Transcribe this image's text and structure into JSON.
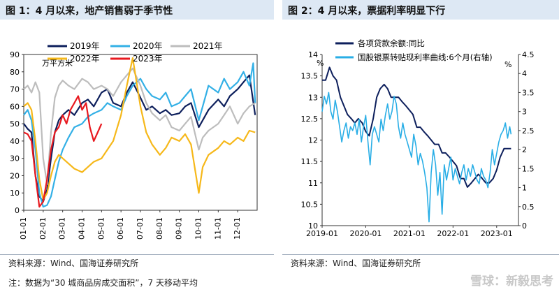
{
  "panel1": {
    "title": "图 1：4 月以来，地产销售弱于季节性",
    "source": "资料来源：Wind、国海证券研究所",
    "note": "注：数据为“30 城商品房成交面积”，7 天移动平均"
  },
  "panel2": {
    "title": "图 2：4 月以来，票据利率明显下行",
    "source": "资料来源：Wind、国海证券研究所"
  },
  "watermark": "雪球：新毅思考",
  "chart_data": [
    {
      "type": "line",
      "ylabel": "万平方米",
      "ylim": [
        0,
        90
      ],
      "yticks": [
        0,
        10,
        20,
        30,
        40,
        50,
        60,
        70,
        80,
        90
      ],
      "categories": [
        "01-01",
        "02-01",
        "03-01",
        "04-01",
        "05-01",
        "06-01",
        "07-01",
        "08-01",
        "09-01",
        "10-01",
        "11-01",
        "12-01"
      ],
      "x_unit": "month (1 = 01-01, 13 = year end)",
      "series": [
        {
          "name": "2019年",
          "color": "#0d1f5c",
          "width": 2.2,
          "x": [
            1,
            1.2,
            1.4,
            1.6,
            1.8,
            2.0,
            2.2,
            2.4,
            2.6,
            2.8,
            3.0,
            3.3,
            3.6,
            4.0,
            4.3,
            4.6,
            5.0,
            5.3,
            5.6,
            6.0,
            6.3,
            6.6,
            7.0,
            7.3,
            7.6,
            8.0,
            8.3,
            8.6,
            9.0,
            9.3,
            9.6,
            10.0,
            10.2,
            10.5,
            11.0,
            11.3,
            11.6,
            12.0,
            12.3,
            12.6,
            12.9
          ],
          "y": [
            50,
            47,
            45,
            20,
            8,
            5,
            12,
            30,
            45,
            52,
            55,
            58,
            55,
            62,
            64,
            60,
            68,
            70,
            62,
            60,
            68,
            74,
            65,
            58,
            60,
            56,
            58,
            55,
            56,
            60,
            62,
            48,
            52,
            58,
            64,
            60,
            66,
            70,
            74,
            78,
            55
          ]
        },
        {
          "name": "2020年",
          "color": "#33b0e6",
          "width": 2.2,
          "x": [
            1,
            1.2,
            1.4,
            1.6,
            1.8,
            2.0,
            2.2,
            2.4,
            2.6,
            2.8,
            3.0,
            3.3,
            3.6,
            4.0,
            4.3,
            4.6,
            5.0,
            5.3,
            5.6,
            6.0,
            6.3,
            6.6,
            7.0,
            7.3,
            7.6,
            8.0,
            8.3,
            8.6,
            9.0,
            9.3,
            9.6,
            10.0,
            10.2,
            10.5,
            11.0,
            11.3,
            11.6,
            12.0,
            12.3,
            12.6,
            12.8,
            12.9
          ],
          "y": [
            55,
            58,
            52,
            35,
            10,
            2,
            3,
            8,
            18,
            28,
            35,
            42,
            48,
            50,
            54,
            56,
            58,
            62,
            60,
            58,
            66,
            72,
            76,
            70,
            66,
            64,
            68,
            60,
            62,
            66,
            70,
            52,
            60,
            72,
            68,
            76,
            70,
            74,
            80,
            72,
            85,
            62
          ]
        },
        {
          "name": "2021年",
          "color": "#bdbdbd",
          "width": 2.2,
          "x": [
            1,
            1.2,
            1.4,
            1.6,
            1.8,
            2.0,
            2.2,
            2.4,
            2.6,
            2.8,
            3.0,
            3.3,
            3.6,
            4.0,
            4.3,
            4.6,
            5.0,
            5.3,
            5.6,
            6.0,
            6.3,
            6.6,
            7.0,
            7.3,
            7.6,
            8.0,
            8.3,
            8.6,
            9.0,
            9.3,
            9.6,
            10.0,
            10.2,
            10.5,
            11.0,
            11.3,
            11.6,
            12.0,
            12.3,
            12.6,
            12.9
          ],
          "y": [
            70,
            72,
            68,
            74,
            68,
            30,
            15,
            45,
            65,
            72,
            75,
            72,
            70,
            76,
            74,
            70,
            72,
            70,
            66,
            74,
            78,
            82,
            72,
            62,
            56,
            52,
            55,
            48,
            46,
            50,
            54,
            35,
            42,
            46,
            50,
            55,
            60,
            50,
            56,
            60,
            62
          ]
        },
        {
          "name": "2022年",
          "color": "#f6b81a",
          "width": 2.2,
          "x": [
            1,
            1.2,
            1.4,
            1.6,
            1.8,
            2.0,
            2.2,
            2.4,
            2.6,
            2.8,
            3.0,
            3.3,
            3.6,
            4.0,
            4.3,
            4.6,
            5.0,
            5.3,
            5.6,
            6.0,
            6.3,
            6.6,
            7.0,
            7.3,
            7.6,
            8.0,
            8.3,
            8.6,
            9.0,
            9.3,
            9.6,
            10.0,
            10.2,
            10.5,
            11.0,
            11.3,
            11.6,
            12.0,
            12.3,
            12.6,
            12.9
          ],
          "y": [
            60,
            62,
            58,
            40,
            18,
            6,
            10,
            20,
            28,
            32,
            30,
            27,
            24,
            22,
            25,
            28,
            30,
            35,
            40,
            55,
            72,
            88,
            60,
            45,
            38,
            32,
            36,
            42,
            40,
            44,
            38,
            10,
            25,
            32,
            36,
            40,
            38,
            42,
            40,
            46,
            45
          ]
        },
        {
          "name": "2023年",
          "color": "#e8191f",
          "width": 2.2,
          "x": [
            1,
            1.2,
            1.4,
            1.6,
            1.8,
            2.0,
            2.2,
            2.4,
            2.6,
            2.8,
            3.0,
            3.2,
            3.4,
            3.6,
            3.8,
            4.0,
            4.2,
            4.4,
            4.6,
            4.8,
            5.0
          ],
          "y": [
            45,
            44,
            40,
            20,
            2,
            5,
            18,
            35,
            45,
            48,
            55,
            50,
            58,
            62,
            66,
            58,
            62,
            48,
            40,
            45,
            50
          ]
        }
      ]
    },
    {
      "type": "line",
      "ylabel_left": "%",
      "ylabel_right": "%",
      "ylim_left": [
        10,
        14
      ],
      "ylim_right": [
        0,
        4.5
      ],
      "yticks_left": [
        10,
        10.5,
        11,
        11.5,
        12,
        12.5,
        13,
        13.5,
        14
      ],
      "yticks_right": [
        0,
        0.5,
        1,
        1.5,
        2,
        2.5,
        3,
        3.5,
        4,
        4.5
      ],
      "categories": [
        "2019-01",
        "2020-01",
        "2021-01",
        "2022-01",
        "2023-01"
      ],
      "x_unit": "years since 2019-01",
      "series": [
        {
          "name": "各项贷款余额:同比",
          "axis": "left",
          "color": "#0d1f5c",
          "width": 2,
          "x": [
            0,
            0.08,
            0.17,
            0.25,
            0.33,
            0.42,
            0.5,
            0.58,
            0.67,
            0.75,
            0.83,
            0.92,
            1.0,
            1.08,
            1.17,
            1.25,
            1.33,
            1.42,
            1.5,
            1.58,
            1.67,
            1.75,
            1.83,
            1.92,
            2.0,
            2.08,
            2.17,
            2.25,
            2.33,
            2.42,
            2.5,
            2.58,
            2.67,
            2.75,
            2.83,
            2.92,
            3.0,
            3.08,
            3.17,
            3.25,
            3.33,
            3.42,
            3.5,
            3.58,
            3.67,
            3.75,
            3.83,
            3.92,
            4.0,
            4.08,
            4.17,
            4.25,
            4.33
          ],
          "y": [
            13.4,
            13.4,
            13.7,
            13.5,
            13.4,
            13.0,
            12.8,
            12.6,
            12.5,
            12.4,
            12.5,
            12.4,
            12.2,
            12.1,
            12.5,
            13.0,
            13.2,
            13.3,
            13.2,
            13.0,
            13.0,
            13.0,
            12.9,
            12.8,
            12.7,
            12.6,
            12.3,
            12.3,
            12.2,
            12.1,
            12.0,
            11.9,
            11.9,
            11.7,
            11.7,
            11.6,
            11.5,
            11.4,
            11.1,
            11.1,
            10.9,
            11.0,
            11.1,
            11.2,
            11.1,
            11.0,
            11.0,
            11.1,
            11.3,
            11.6,
            11.8,
            11.8,
            11.8
          ]
        },
        {
          "name": "国股银票转贴现利率曲线:6个月(右轴)",
          "axis": "right",
          "color": "#29aee6",
          "width": 1.6,
          "x": [
            0,
            0.05,
            0.1,
            0.15,
            0.2,
            0.25,
            0.3,
            0.35,
            0.4,
            0.45,
            0.5,
            0.55,
            0.6,
            0.65,
            0.7,
            0.75,
            0.8,
            0.85,
            0.9,
            0.95,
            1.0,
            1.05,
            1.1,
            1.15,
            1.2,
            1.25,
            1.3,
            1.35,
            1.4,
            1.45,
            1.5,
            1.55,
            1.6,
            1.65,
            1.7,
            1.75,
            1.8,
            1.85,
            1.9,
            1.95,
            2.0,
            2.05,
            2.1,
            2.15,
            2.2,
            2.25,
            2.3,
            2.35,
            2.4,
            2.45,
            2.5,
            2.55,
            2.6,
            2.65,
            2.7,
            2.75,
            2.8,
            2.85,
            2.9,
            2.95,
            3.0,
            3.05,
            3.1,
            3.15,
            3.2,
            3.25,
            3.3,
            3.35,
            3.4,
            3.45,
            3.5,
            3.55,
            3.6,
            3.65,
            3.7,
            3.75,
            3.8,
            3.85,
            3.9,
            3.95,
            4.0,
            4.05,
            4.1,
            4.15,
            4.2,
            4.25,
            4.3,
            4.33
          ],
          "y": [
            3.0,
            3.4,
            3.2,
            3.5,
            3.0,
            2.8,
            3.3,
            3.0,
            2.6,
            2.2,
            2.5,
            2.7,
            2.3,
            2.6,
            2.5,
            2.7,
            2.4,
            2.8,
            2.2,
            2.6,
            2.9,
            2.2,
            1.6,
            2.4,
            2.6,
            2.4,
            2.2,
            2.8,
            2.5,
            2.9,
            3.2,
            2.8,
            3.0,
            3.4,
            3.2,
            2.6,
            2.3,
            2.7,
            2.4,
            2.2,
            2.0,
            1.8,
            2.4,
            2.1,
            1.6,
            1.9,
            1.7,
            1.4,
            1.0,
            0.1,
            1.4,
            2.0,
            1.6,
            0.8,
            1.4,
            0.3,
            1.6,
            1.2,
            1.5,
            1.8,
            1.2,
            1.5,
            1.3,
            1.1,
            1.4,
            1.6,
            1.2,
            1.5,
            1.3,
            1.6,
            1.4,
            1.2,
            1.1,
            1.5,
            1.3,
            1.2,
            1.0,
            1.4,
            2.0,
            1.6,
            1.9,
            2.2,
            2.4,
            2.5,
            2.7,
            2.3,
            2.6,
            2.4
          ]
        }
      ]
    }
  ]
}
